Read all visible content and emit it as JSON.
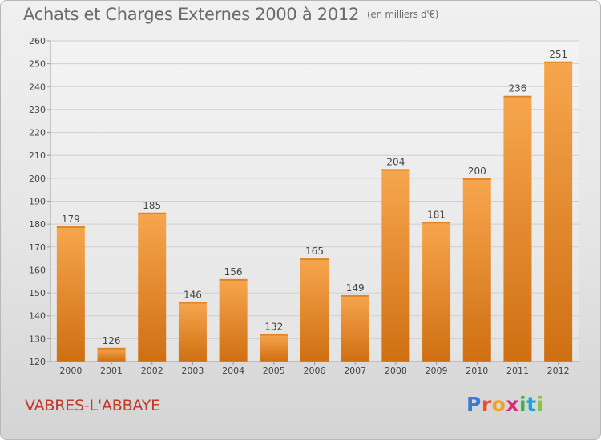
{
  "page": {
    "title": "Achats et Charges Externes 2000 à 2012",
    "title_unit": "(en milliers d'€)",
    "commune": "VABRES-L'ABBAYE",
    "logo_letters": [
      "P",
      "r",
      "o",
      "x",
      "i",
      "t",
      "i"
    ],
    "logo_colors": [
      "#3a7bd5",
      "#e8502f",
      "#f2a31b",
      "#d62f7a",
      "#3bb54a",
      "#1aa3d9",
      "#8ac43f"
    ]
  },
  "colors": {
    "bar_top": "#f7a64e",
    "bar_bottom": "#cf6f12",
    "label": "#444444",
    "grid": "#cfcfcf",
    "commune": "#c0392b"
  },
  "chart_data": {
    "type": "bar",
    "title": "Achats et Charges Externes 2000 à 2012",
    "categories": [
      "2000",
      "2001",
      "2002",
      "2003",
      "2004",
      "2005",
      "2006",
      "2007",
      "2008",
      "2009",
      "2010",
      "2011",
      "2012"
    ],
    "values": [
      179,
      126,
      185,
      146,
      156,
      132,
      165,
      149,
      204,
      181,
      200,
      236,
      251
    ],
    "ylim": [
      120,
      260
    ],
    "yticks": [
      120,
      130,
      140,
      150,
      160,
      170,
      180,
      190,
      200,
      210,
      220,
      230,
      240,
      250,
      260
    ],
    "xlabel": "",
    "ylabel": "",
    "grid": true,
    "data_labels": true
  }
}
